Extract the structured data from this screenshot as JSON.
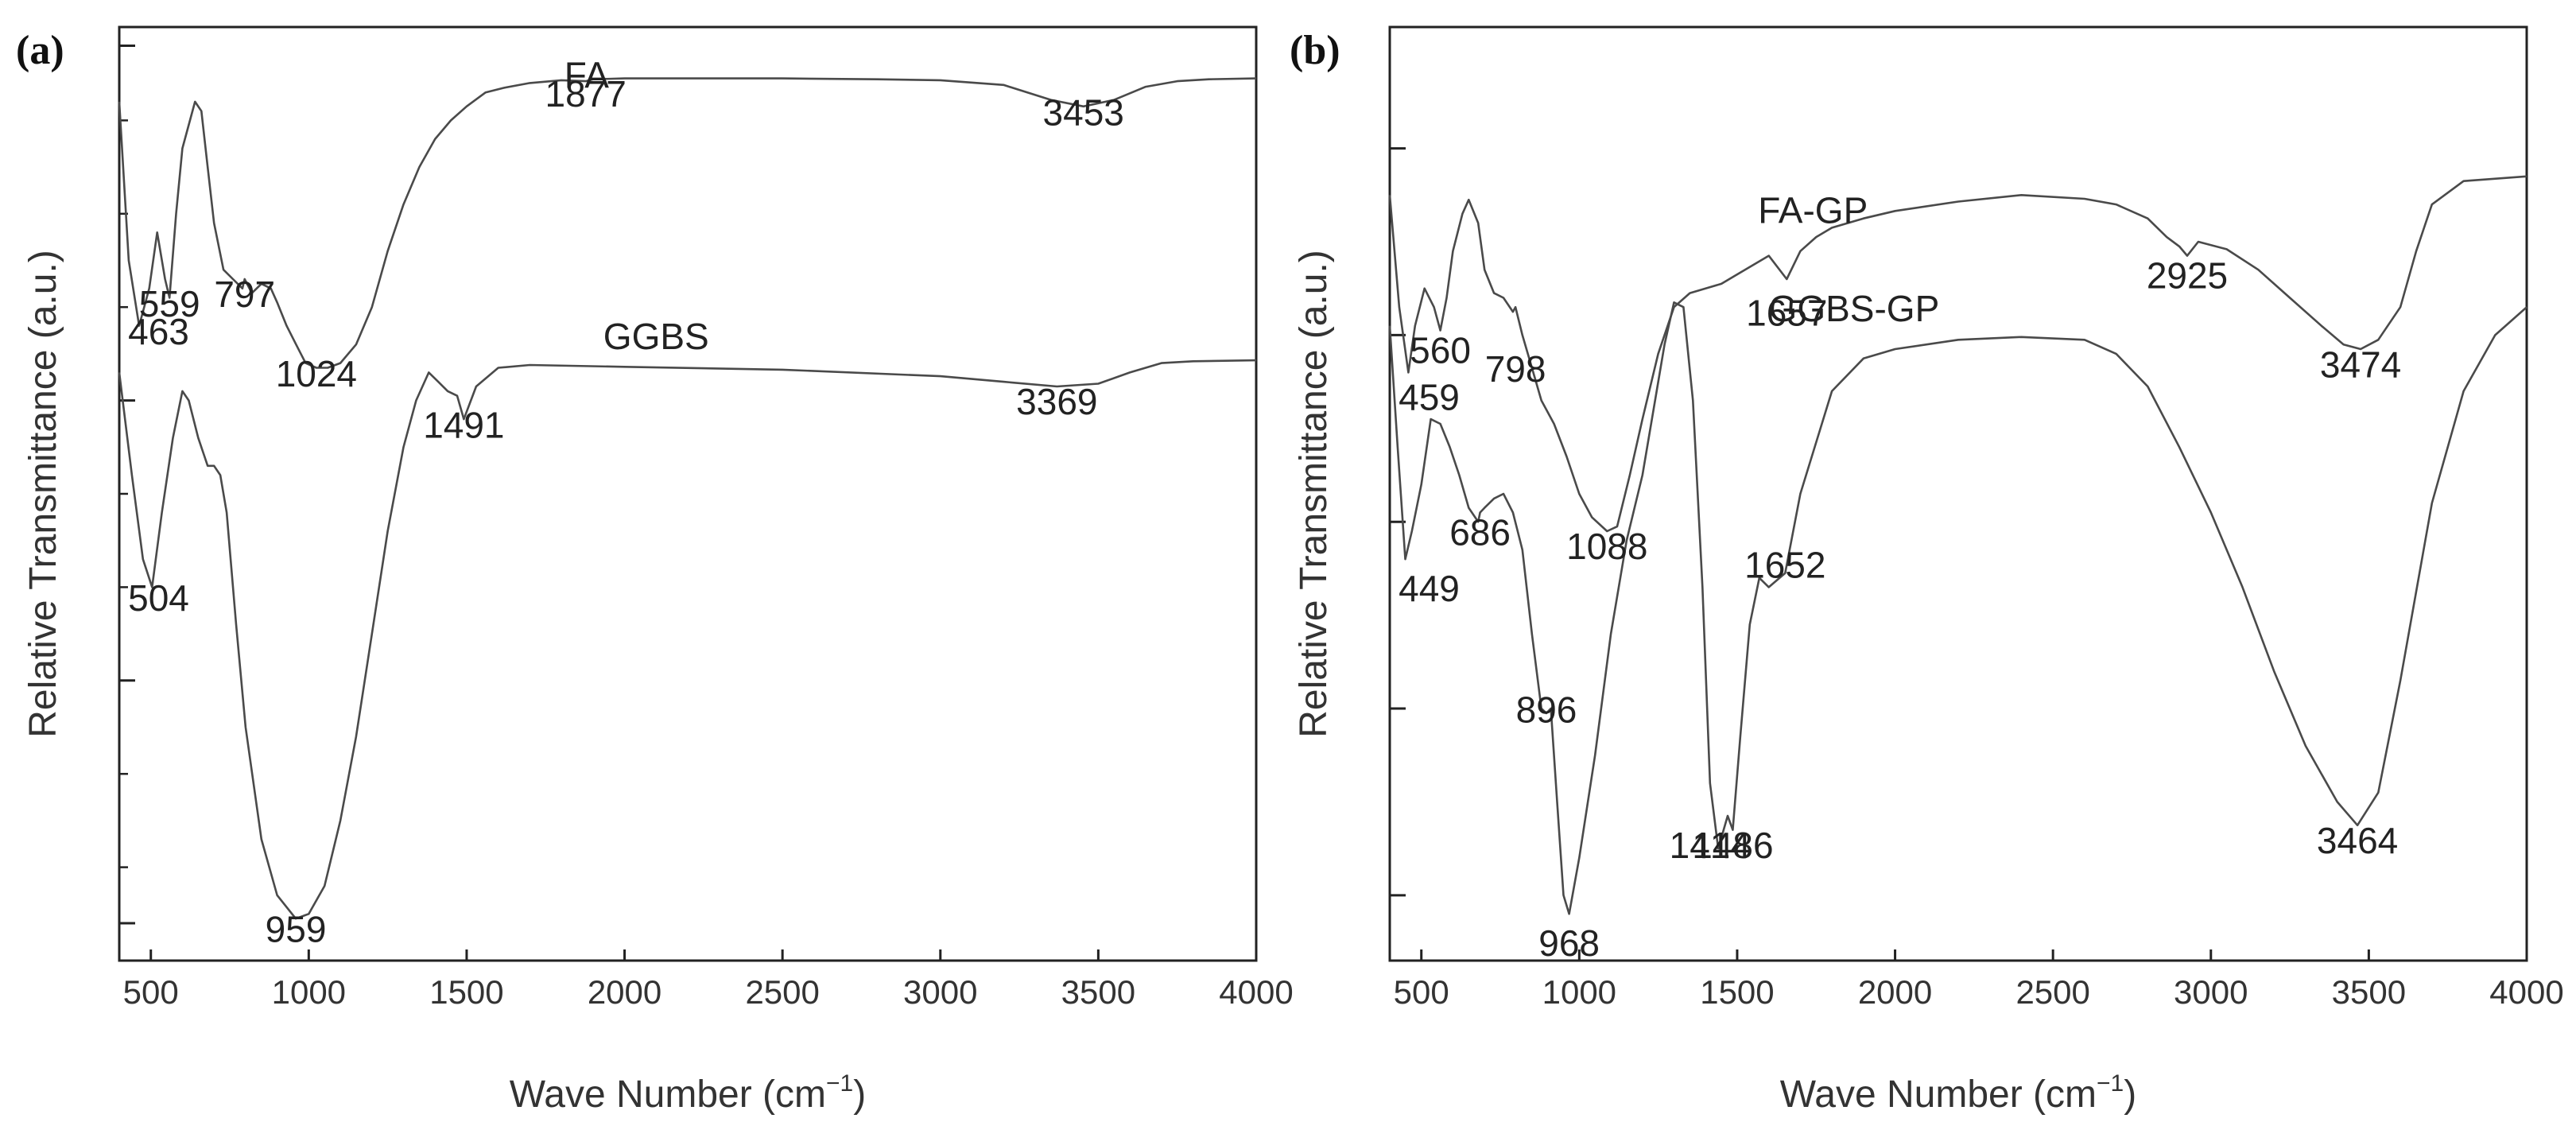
{
  "chart_data": [
    {
      "type": "line",
      "panel_label": "(a)",
      "xlabel_main": "Wave Number (cm",
      "xlabel_sup": "−1",
      "xlabel_end": ")",
      "ylabel": "Relative Transmittance (a.u.)",
      "xlim": [
        400,
        4000
      ],
      "ylim": [
        0,
        100
      ],
      "x_ticks": [
        500,
        1000,
        1500,
        2000,
        2500,
        3000,
        3500,
        4000
      ],
      "x_tick_labels": [
        "500",
        "1000",
        "1500",
        "2000",
        "2500",
        "3000",
        "3500",
        "4000"
      ],
      "y_major_ticks": [
        4,
        30,
        60,
        98
      ],
      "y_minor_ticks": [
        10,
        20,
        40,
        50,
        70,
        80,
        90
      ],
      "series": [
        {
          "name": "FA",
          "x": [
            400,
            430,
            463,
            495,
            520,
            545,
            559,
            580,
            600,
            640,
            660,
            680,
            700,
            730,
            760,
            790,
            797,
            820,
            850,
            880,
            900,
            930,
            960,
            990,
            1024,
            1060,
            1100,
            1150,
            1200,
            1250,
            1300,
            1350,
            1400,
            1450,
            1500,
            1560,
            1620,
            1700,
            1800,
            1877,
            1900,
            2000,
            2200,
            2500,
            2800,
            3000,
            3200,
            3350,
            3453,
            3550,
            3650,
            3750,
            3850,
            4000
          ],
          "y": [
            92,
            75,
            68,
            72,
            78,
            73,
            71,
            80,
            87,
            92,
            91,
            85,
            79,
            74,
            73,
            72,
            73,
            71.5,
            72.5,
            72,
            70.5,
            68,
            66,
            64,
            63.5,
            63.5,
            64,
            66,
            70,
            76,
            81,
            85,
            88,
            90,
            91.5,
            93,
            93.5,
            94,
            94.3,
            94.2,
            94.4,
            94.5,
            94.5,
            94.5,
            94.4,
            94.3,
            93.8,
            92.2,
            91.5,
            92.2,
            93.6,
            94.2,
            94.4,
            94.5
          ]
        },
        {
          "name": "GGBS",
          "x": [
            400,
            440,
            475,
            504,
            535,
            570,
            600,
            620,
            650,
            680,
            700,
            720,
            740,
            770,
            800,
            850,
            900,
            959,
            1000,
            1050,
            1100,
            1150,
            1200,
            1250,
            1300,
            1340,
            1380,
            1410,
            1440,
            1470,
            1491,
            1530,
            1600,
            1700,
            2000,
            2500,
            3000,
            3200,
            3369,
            3500,
            3600,
            3700,
            3800,
            4000
          ],
          "y": [
            63,
            52,
            43,
            40,
            48,
            56,
            61,
            60,
            56,
            53,
            53,
            52,
            48,
            36,
            25,
            13,
            7,
            4.5,
            5,
            8,
            15,
            24,
            35,
            46,
            55,
            60,
            63,
            62,
            61,
            60.5,
            58,
            61.5,
            63.5,
            63.8,
            63.6,
            63.3,
            62.6,
            62,
            61.5,
            61.8,
            63,
            64,
            64.2,
            64.3
          ]
        }
      ],
      "annotations": [
        {
          "text": "463",
          "x": 463,
          "y": 66
        },
        {
          "text": "559",
          "x": 559,
          "y": 69
        },
        {
          "text": "797",
          "x": 797,
          "y": 70
        },
        {
          "text": "1024",
          "x": 1024,
          "y": 61.5
        },
        {
          "text": "1877",
          "x": 1877,
          "y": 91.5
        },
        {
          "text": "3453",
          "x": 3453,
          "y": 89.5
        },
        {
          "text": "FA",
          "x": 1880,
          "y": 93.5
        },
        {
          "text": "GGBS",
          "x": 2100,
          "y": 65.5
        },
        {
          "text": "504",
          "x": 504,
          "y": 37.5
        },
        {
          "text": "1491",
          "x": 1491,
          "y": 56
        },
        {
          "text": "3369",
          "x": 3369,
          "y": 58.5
        },
        {
          "text": "959",
          "x": 959,
          "y": 2
        }
      ]
    },
    {
      "type": "line",
      "panel_label": "(b)",
      "xlabel_main": "Wave Number (cm",
      "xlabel_sup": "−1",
      "xlabel_end": ")",
      "ylabel": "Relative Transmittance (a.u.)",
      "xlim": [
        400,
        4000
      ],
      "ylim": [
        0,
        100
      ],
      "x_ticks": [
        500,
        1000,
        1500,
        2000,
        2500,
        3000,
        3500,
        4000
      ],
      "x_tick_labels": [
        "500",
        "1000",
        "1500",
        "2000",
        "2500",
        "3000",
        "3500",
        "4000"
      ],
      "y_major_ticks": [
        7,
        27,
        47,
        67,
        87
      ],
      "y_minor_ticks": [],
      "series": [
        {
          "name": "FA-GP",
          "x": [
            400,
            430,
            459,
            480,
            510,
            540,
            560,
            580,
            600,
            630,
            650,
            680,
            700,
            730,
            760,
            790,
            798,
            820,
            850,
            880,
            920,
            960,
            1000,
            1040,
            1088,
            1120,
            1160,
            1200,
            1250,
            1300,
            1350,
            1400,
            1450,
            1500,
            1550,
            1600,
            1657,
            1700,
            1750,
            1800,
            1900,
            2000,
            2200,
            2400,
            2600,
            2700,
            2800,
            2860,
            2900,
            2925,
            2960,
            3050,
            3150,
            3250,
            3350,
            3420,
            3474,
            3530,
            3600,
            3650,
            3700,
            3800,
            4000
          ],
          "y": [
            82,
            70,
            63,
            68,
            72,
            70,
            67.5,
            71,
            76,
            80,
            81.5,
            79,
            74,
            71.5,
            71,
            69.5,
            70,
            67,
            63.5,
            60,
            57.5,
            54,
            50,
            47.5,
            46,
            46.5,
            52,
            58,
            65,
            70,
            71.5,
            72,
            72.5,
            73.5,
            74.5,
            75.5,
            73,
            76,
            77.5,
            78.5,
            79.5,
            80.3,
            81.3,
            82,
            81.6,
            81,
            79.5,
            77.5,
            76.5,
            75.5,
            77,
            76.2,
            74,
            71,
            68,
            66,
            65.5,
            66.5,
            70,
            76,
            81,
            83.5,
            84
          ]
        },
        {
          "name": "GGBS-GP",
          "x": [
            400,
            425,
            449,
            470,
            500,
            530,
            560,
            590,
            620,
            650,
            680,
            686,
            700,
            730,
            760,
            790,
            820,
            850,
            880,
            896,
            910,
            930,
            950,
            968,
            1000,
            1050,
            1100,
            1150,
            1200,
            1240,
            1270,
            1300,
            1330,
            1360,
            1390,
            1414,
            1440,
            1470,
            1486,
            1510,
            1540,
            1570,
            1600,
            1652,
            1700,
            1800,
            1900,
            2000,
            2200,
            2400,
            2600,
            2700,
            2800,
            2900,
            3000,
            3100,
            3200,
            3300,
            3400,
            3464,
            3530,
            3600,
            3700,
            3800,
            3900,
            4000
          ],
          "y": [
            68,
            55,
            43,
            46,
            51,
            58,
            57.5,
            55,
            52,
            48.5,
            47,
            48,
            48.5,
            49.5,
            50,
            48,
            44,
            35,
            27,
            26.5,
            27,
            17,
            7,
            5,
            11,
            22,
            35,
            45,
            52,
            60,
            66,
            70.5,
            70,
            60,
            40,
            19,
            12,
            15.5,
            14,
            24,
            36,
            41,
            40,
            41.5,
            50,
            61,
            64.5,
            65.5,
            66.5,
            66.8,
            66.5,
            65,
            61.5,
            55,
            48,
            40,
            31,
            23,
            17,
            14.5,
            18,
            30,
            49,
            61,
            67,
            70
          ]
        }
      ],
      "annotations": [
        {
          "text": "FA-GP",
          "x": 1740,
          "y": 79
        },
        {
          "text": "459",
          "x": 459,
          "y": 59
        },
        {
          "text": "560",
          "x": 560,
          "y": 64
        },
        {
          "text": "798",
          "x": 798,
          "y": 62
        },
        {
          "text": "1088",
          "x": 1088,
          "y": 43
        },
        {
          "text": "1657",
          "x": 1657,
          "y": 68
        },
        {
          "text": "2925",
          "x": 2925,
          "y": 72
        },
        {
          "text": "3474",
          "x": 3474,
          "y": 62.5
        },
        {
          "text": "GGBS-GP",
          "x": 1870,
          "y": 68.5
        },
        {
          "text": "449",
          "x": 449,
          "y": 38.5
        },
        {
          "text": "686",
          "x": 686,
          "y": 44.5
        },
        {
          "text": "896",
          "x": 896,
          "y": 25.5
        },
        {
          "text": "1652",
          "x": 1652,
          "y": 41
        },
        {
          "text": "1414",
          "x": 1414,
          "y": 11
        },
        {
          "text": "1486",
          "x": 1486,
          "y": 11
        },
        {
          "text": "3464",
          "x": 3464,
          "y": 11.5
        },
        {
          "text": "968",
          "x": 968,
          "y": 0.5
        }
      ]
    }
  ]
}
